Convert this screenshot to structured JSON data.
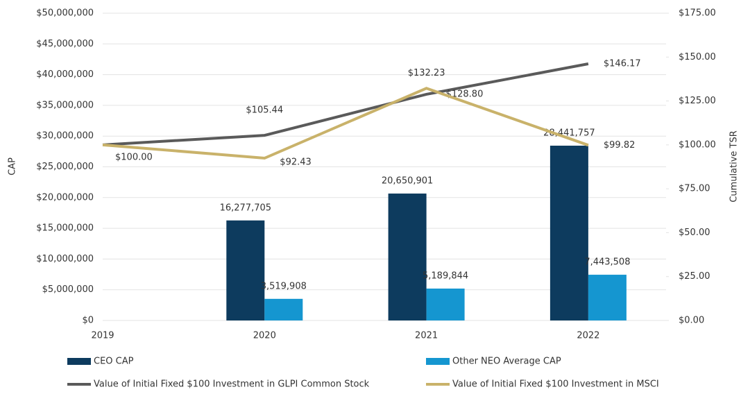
{
  "chart_data": {
    "type": "bar-line",
    "y_label": "CAP",
    "y2_label": "Cumulative TSR",
    "categories": [
      "2019",
      "2020",
      "2021",
      "2022"
    ],
    "series": [
      {
        "name": "CEO CAP",
        "color": "#0d3b5e",
        "kind": "bar",
        "values": [
          null,
          16277705,
          20650901,
          28441757
        ],
        "value_labels": [
          null,
          "16,277,705",
          "20,650,901",
          "28,441,757"
        ]
      },
      {
        "name": "Other NEO Average CAP",
        "color": "#1596d0",
        "kind": "bar",
        "values": [
          null,
          3519908,
          5189844,
          7443508
        ],
        "value_labels": [
          null,
          "3,519,908",
          "5,189,844",
          "7,443,508"
        ]
      },
      {
        "name": "Value of Initial Fixed $100 Investment in GLPI Common Stock",
        "color": "#5a5a5a",
        "kind": "line",
        "axis": "y2",
        "values": [
          100.0,
          105.44,
          128.8,
          146.17
        ],
        "value_labels": [
          null,
          "$105.44",
          "$128.80",
          "$146.17"
        ]
      },
      {
        "name": "Value of Initial Fixed $100 Investment in MSCI",
        "color": "#c9b26a",
        "kind": "line",
        "axis": "y2",
        "values": [
          100.0,
          92.43,
          132.23,
          99.82
        ],
        "value_labels": [
          "$100.00",
          "$92.43",
          "$132.23",
          "$99.82"
        ]
      }
    ],
    "ylim": [
      0,
      50000000
    ],
    "yticks": [
      {
        "value": 0,
        "label": "$0"
      },
      {
        "value": 5000000,
        "label": "$5,000,000"
      },
      {
        "value": 10000000,
        "label": "$10,000,000"
      },
      {
        "value": 15000000,
        "label": "$15,000,000"
      },
      {
        "value": 20000000,
        "label": "$20,000,000"
      },
      {
        "value": 25000000,
        "label": "$25,000,000"
      },
      {
        "value": 30000000,
        "label": "$30,000,000"
      },
      {
        "value": 35000000,
        "label": "$35,000,000"
      },
      {
        "value": 40000000,
        "label": "$40,000,000"
      },
      {
        "value": 45000000,
        "label": "$45,000,000"
      },
      {
        "value": 50000000,
        "label": "$50,000,000"
      }
    ],
    "y2lim": [
      0,
      175
    ],
    "y2ticks": [
      {
        "value": 0,
        "label": "$0.00"
      },
      {
        "value": 25,
        "label": "$25.00"
      },
      {
        "value": 50,
        "label": "$50.00"
      },
      {
        "value": 75,
        "label": "$75.00"
      },
      {
        "value": 100,
        "label": "$100.00"
      },
      {
        "value": 125,
        "label": "$125.00"
      },
      {
        "value": 150,
        "label": "$150.00"
      },
      {
        "value": 175,
        "label": "$175.00"
      }
    ],
    "grid": true
  }
}
